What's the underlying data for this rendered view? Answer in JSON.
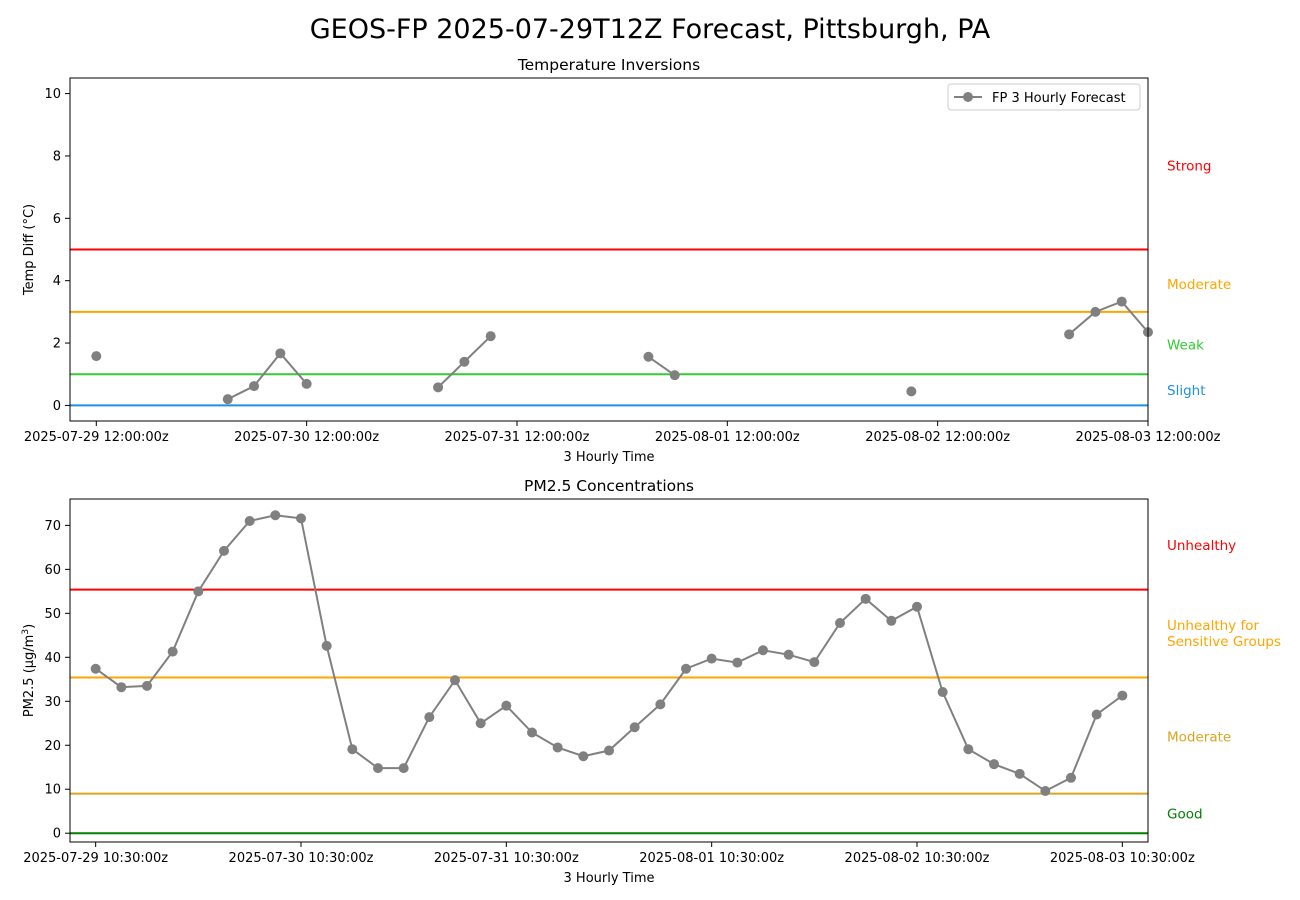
{
  "figure": {
    "suptitle": "GEOS-FP 2025-07-29T12Z Forecast, Pittsburgh, PA"
  },
  "chart_data": [
    {
      "type": "line",
      "title": "Temperature Inversions",
      "xlabel": "3 Hourly Time",
      "ylabel": "Temp Diff (°C)",
      "ylim": [
        -0.5,
        10.5
      ],
      "y_ticks": [
        0,
        2,
        4,
        6,
        8,
        10
      ],
      "x_range": [
        "2025-07-29 09:00:00z",
        "2025-08-03 12:00:00z"
      ],
      "x_ticks": [
        "2025-07-29 12:00:00z",
        "2025-07-30 12:00:00z",
        "2025-07-31 12:00:00z",
        "2025-08-01 12:00:00z",
        "2025-08-02 12:00:00z",
        "2025-08-03 12:00:00z"
      ],
      "legend": {
        "position": "top-right"
      },
      "series": [
        {
          "name": "FP 3 Hourly Forecast",
          "color": "#808080",
          "points": [
            {
              "x": "2025-07-29 12:00:00z",
              "y": 1.58
            },
            {
              "x": "2025-07-30 03:00:00z",
              "y": 0.2
            },
            {
              "x": "2025-07-30 06:00:00z",
              "y": 0.62
            },
            {
              "x": "2025-07-30 09:00:00z",
              "y": 1.67
            },
            {
              "x": "2025-07-30 12:00:00z",
              "y": 0.69
            },
            {
              "x": "2025-07-31 03:00:00z",
              "y": 0.58
            },
            {
              "x": "2025-07-31 06:00:00z",
              "y": 1.4
            },
            {
              "x": "2025-07-31 09:00:00z",
              "y": 2.22
            },
            {
              "x": "2025-08-01 03:00:00z",
              "y": 1.56
            },
            {
              "x": "2025-08-01 06:00:00z",
              "y": 0.97
            },
            {
              "x": "2025-08-02 09:00:00z",
              "y": 0.45
            },
            {
              "x": "2025-08-03 03:00:00z",
              "y": 2.28
            },
            {
              "x": "2025-08-03 06:00:00z",
              "y": 3.0
            },
            {
              "x": "2025-08-03 09:00:00z",
              "y": 3.33
            },
            {
              "x": "2025-08-03 12:00:00z",
              "y": 2.35
            }
          ],
          "connected_runs": [
            [
              1,
              2,
              3,
              4
            ],
            [
              5,
              6,
              7
            ],
            [
              8,
              9
            ],
            [
              11,
              12,
              13,
              14
            ]
          ]
        }
      ],
      "thresholds": [
        {
          "y": 0,
          "color": "#1f8fe8"
        },
        {
          "y": 1,
          "color": "#33cc33"
        },
        {
          "y": 3,
          "color": "#ffa500"
        },
        {
          "y": 5,
          "color": "#ff0000"
        }
      ],
      "category_labels": [
        {
          "text": "Strong",
          "y": 7.7,
          "color": "#ff0000"
        },
        {
          "text": "Moderate",
          "y": 3.9,
          "color": "#ffa500"
        },
        {
          "text": "Weak",
          "y": 1.95,
          "color": "#33cc33"
        },
        {
          "text": "Slight",
          "y": 0.5,
          "color": "#1f8fe8"
        }
      ]
    },
    {
      "type": "line",
      "title": "PM2.5 Concentrations",
      "xlabel": "3 Hourly Time",
      "ylabel": "PM2.5 (μg/m3)",
      "ylim": [
        -2,
        76
      ],
      "y_ticks": [
        0,
        10,
        20,
        30,
        40,
        50,
        60,
        70
      ],
      "x_range": [
        "2025-07-29 07:30:00z",
        "2025-08-03 13:30:00z"
      ],
      "x_ticks": [
        "2025-07-29 10:30:00z",
        "2025-07-30 10:30:00z",
        "2025-07-31 10:30:00z",
        "2025-08-01 10:30:00z",
        "2025-08-02 10:30:00z",
        "2025-08-03 10:30:00z"
      ],
      "series": [
        {
          "color": "#808080",
          "start": "2025-07-29 10:30:00z",
          "step_hours": 3,
          "values": [
            37.4,
            33.2,
            33.5,
            41.3,
            55.0,
            64.2,
            71.0,
            72.3,
            71.6,
            42.6,
            19.1,
            14.8,
            14.8,
            26.4,
            34.8,
            25.0,
            29.0,
            22.9,
            19.5,
            17.5,
            18.8,
            24.1,
            29.3,
            37.4,
            39.7,
            38.8,
            41.6,
            40.6,
            38.9,
            47.8,
            53.3,
            48.3,
            51.5,
            32.1,
            19.1,
            15.7,
            13.5,
            9.6,
            12.6,
            27.0,
            31.3
          ]
        }
      ],
      "thresholds": [
        {
          "y": 0,
          "color": "#007f00"
        },
        {
          "y": 9,
          "color": "#daa520"
        },
        {
          "y": 35.4,
          "color": "#ffa500"
        },
        {
          "y": 55.4,
          "color": "#ff0000"
        }
      ],
      "category_labels": [
        {
          "text": "Unhealthy",
          "y": 65.5,
          "color": "#ff0000"
        },
        {
          "text": "Unhealthy for\nSensitive Groups",
          "y": 45.5,
          "color": "#ffa500"
        },
        {
          "text": "Moderate",
          "y": 22.0,
          "color": "#daa520"
        },
        {
          "text": "Good",
          "y": 4.5,
          "color": "#007f00"
        }
      ]
    }
  ]
}
